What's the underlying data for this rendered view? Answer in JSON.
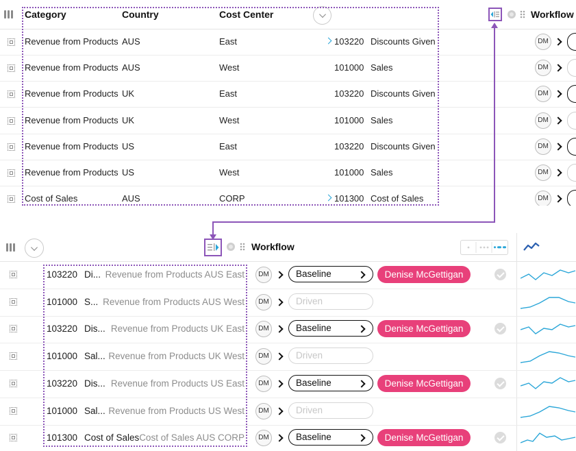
{
  "top": {
    "headers": {
      "category": "Category",
      "country": "Country",
      "cost_center": "Cost Center",
      "workflow": "Workflow"
    },
    "rows": [
      {
        "category": "Revenue from Products",
        "country": "AUS",
        "cost_center": "East",
        "account": "103220",
        "account_name": "Discounts Given",
        "expand": true,
        "dm": "DM",
        "pill": "dark"
      },
      {
        "category": "Revenue from Products",
        "country": "AUS",
        "cost_center": "West",
        "account": "101000",
        "account_name": "Sales",
        "expand": false,
        "dm": "DM",
        "pill": "light"
      },
      {
        "category": "Revenue from Products",
        "country": "UK",
        "cost_center": "East",
        "account": "103220",
        "account_name": "Discounts Given",
        "expand": false,
        "dm": "DM",
        "pill": "dark"
      },
      {
        "category": "Revenue from Products",
        "country": "UK",
        "cost_center": "West",
        "account": "101000",
        "account_name": "Sales",
        "expand": false,
        "dm": "DM",
        "pill": "light"
      },
      {
        "category": "Revenue from Products",
        "country": "US",
        "cost_center": "East",
        "account": "103220",
        "account_name": "Discounts Given",
        "expand": false,
        "dm": "DM",
        "pill": "dark"
      },
      {
        "category": "Revenue from Products",
        "country": "US",
        "cost_center": "West",
        "account": "101000",
        "account_name": "Sales",
        "expand": false,
        "dm": "DM",
        "pill": "light"
      },
      {
        "category": "Cost of Sales",
        "country": "AUS",
        "cost_center": "CORP",
        "account": "101300",
        "account_name": "Cost of Sales",
        "expand": true,
        "dm": "DM",
        "pill": "dark"
      }
    ]
  },
  "bottom": {
    "headers": {
      "workflow": "Workflow"
    },
    "rows": [
      {
        "account": "103220",
        "name": "Di...",
        "desc": "Revenue from Products AUS East",
        "dm": "DM",
        "status": "Baseline",
        "owner": "Denise McGettigan",
        "done": true
      },
      {
        "account": "101000",
        "name": "S...",
        "desc": "Revenue from Products AUS West",
        "dm": "DM",
        "status": "Driven",
        "owner": "",
        "done": false
      },
      {
        "account": "103220",
        "name": "Dis...",
        "desc": "Revenue from Products UK East",
        "dm": "DM",
        "status": "Baseline",
        "owner": "Denise McGettigan",
        "done": true
      },
      {
        "account": "101000",
        "name": "Sal...",
        "desc": "Revenue from Products UK West",
        "dm": "DM",
        "status": "Driven",
        "owner": "",
        "done": false
      },
      {
        "account": "103220",
        "name": "Dis...",
        "desc": "Revenue from Products US East",
        "dm": "DM",
        "status": "Baseline",
        "owner": "Denise McGettigan",
        "done": true
      },
      {
        "account": "101000",
        "name": "Sal...",
        "desc": "Revenue from Products US West",
        "dm": "DM",
        "status": "Driven",
        "owner": "",
        "done": false
      },
      {
        "account": "101300",
        "name": "Cost of Sales",
        "desc": "Cost of Sales AUS CORP",
        "dm": "DM",
        "status": "Baseline",
        "owner": "Denise McGettigan",
        "done": true
      }
    ]
  },
  "colors": {
    "accent": "#8c55b8",
    "owner_pill": "#e8407a",
    "spark": "#2aa6d8"
  },
  "icons": [
    "columns-icon",
    "chevron-down-icon",
    "collapse-panel-icon",
    "expand-panel-icon",
    "globe-icon",
    "drag-handle-icon",
    "trend-icon",
    "row-select-icon",
    "check-icon"
  ]
}
